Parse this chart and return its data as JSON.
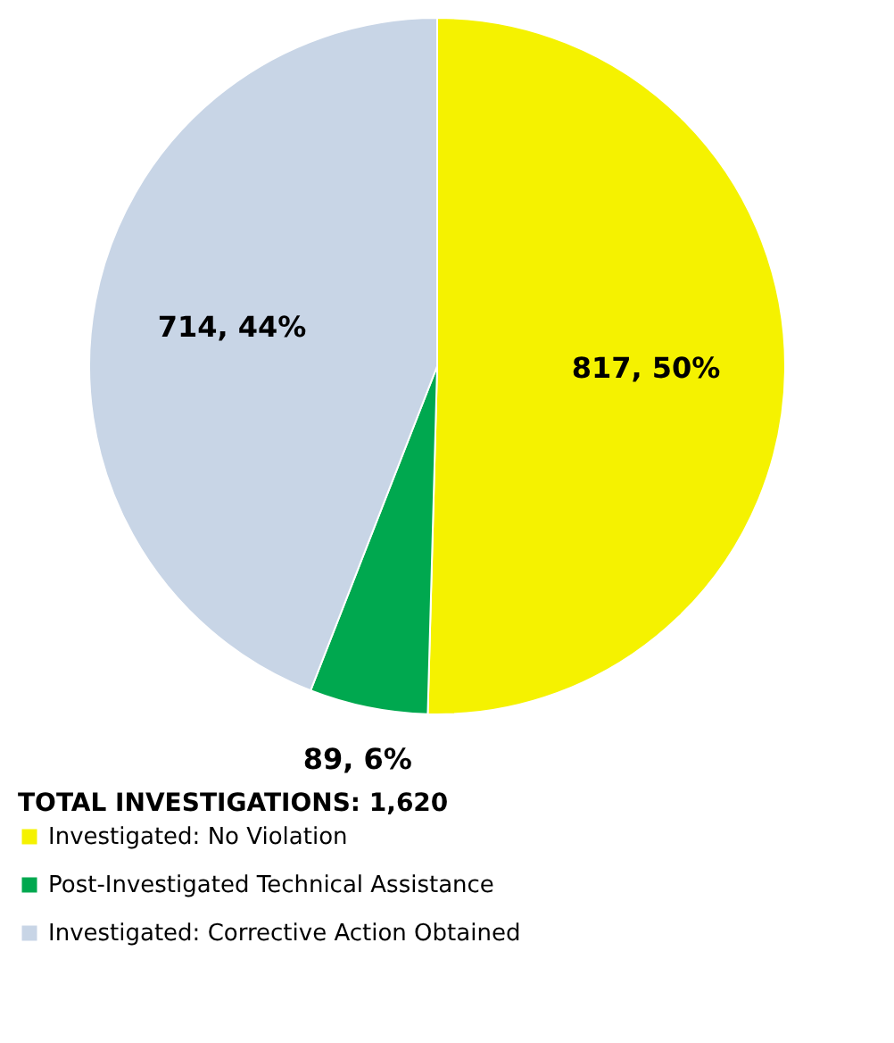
{
  "chart_data": {
    "type": "pie",
    "categories": [
      "Investigated:  No Violation",
      "Post-Investigated Technical Assistance",
      "Investigated:  Corrective Action Obtained"
    ],
    "values": [
      817,
      89,
      714
    ],
    "colors": [
      "#f5f200",
      "#00a84f",
      "#c8d5e6"
    ],
    "value_labels": [
      "817, 50%",
      "89, 6%",
      "714, 44%"
    ],
    "legend_title": "TOTAL INVESTIGATIONS:  1,620",
    "legend": "bottom left"
  }
}
